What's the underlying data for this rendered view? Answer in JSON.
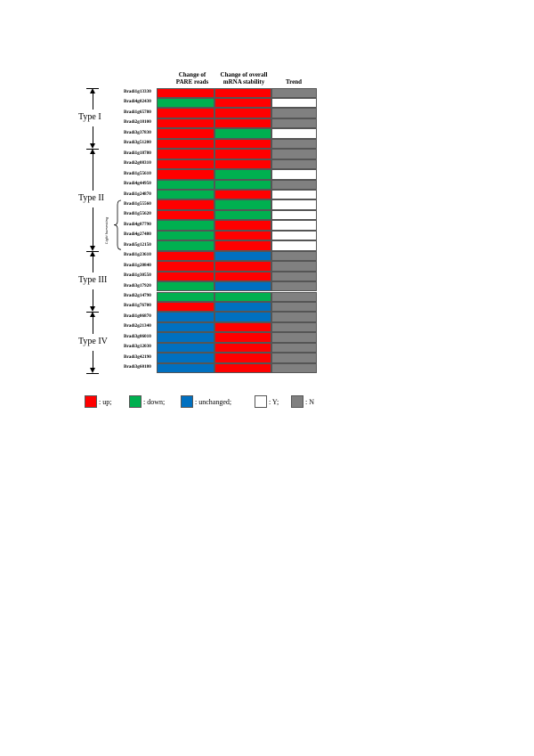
{
  "colors": {
    "up": "#ff0000",
    "down": "#00b050",
    "unchanged": "#0070c0",
    "Y": "#ffffff",
    "N": "#808080"
  },
  "chart_data": {
    "type": "heatmap",
    "columns": [
      "Change of\nPARE reads",
      "Change of overall\nmRNA stability",
      "Trend"
    ],
    "rows": [
      {
        "gene": "Bradi1g13330",
        "pare": "up",
        "stability": "up",
        "trend": "N"
      },
      {
        "gene": "Bradi4g02430",
        "pare": "down",
        "stability": "up",
        "trend": "Y"
      },
      {
        "gene": "Bradi1g65780",
        "pare": "up",
        "stability": "up",
        "trend": "N"
      },
      {
        "gene": "Bradi2g18100",
        "pare": "up",
        "stability": "up",
        "trend": "N"
      },
      {
        "gene": "Bradi3g37830",
        "pare": "up",
        "stability": "down",
        "trend": "Y"
      },
      {
        "gene": "Bradi3g51200",
        "pare": "up",
        "stability": "up",
        "trend": "N"
      },
      {
        "gene": "Bradi1g18780",
        "pare": "up",
        "stability": "up",
        "trend": "N"
      },
      {
        "gene": "Bradi2g08310",
        "pare": "up",
        "stability": "up",
        "trend": "N"
      },
      {
        "gene": "Bradi1g55610",
        "pare": "up",
        "stability": "down",
        "trend": "Y"
      },
      {
        "gene": "Bradi4g44950",
        "pare": "down",
        "stability": "down",
        "trend": "N"
      },
      {
        "gene": "Bradi1g24870",
        "pare": "down",
        "stability": "up",
        "trend": "Y"
      },
      {
        "gene": "Bradi1g55560",
        "pare": "up",
        "stability": "down",
        "trend": "Y"
      },
      {
        "gene": "Bradi1g55620",
        "pare": "up",
        "stability": "down",
        "trend": "Y"
      },
      {
        "gene": "Bradi4g07790",
        "pare": "down",
        "stability": "up",
        "trend": "Y"
      },
      {
        "gene": "Bradi4g27480",
        "pare": "down",
        "stability": "up",
        "trend": "Y"
      },
      {
        "gene": "Bradi5g12150",
        "pare": "down",
        "stability": "up",
        "trend": "Y"
      },
      {
        "gene": "Bradi1g23610",
        "pare": "up",
        "stability": "unchanged",
        "trend": "N"
      },
      {
        "gene": "Bradi1g20840",
        "pare": "up",
        "stability": "up",
        "trend": "N"
      },
      {
        "gene": "Bradi1g30550",
        "pare": "up",
        "stability": "up",
        "trend": "N"
      },
      {
        "gene": "Bradi3g17920",
        "pare": "down",
        "stability": "unchanged",
        "trend": "N"
      },
      {
        "gene": "Bradi2g14790",
        "pare": "down",
        "stability": "down",
        "trend": "N"
      },
      {
        "gene": "Bradi1g76700",
        "pare": "up",
        "stability": "unchanged",
        "trend": "N"
      },
      {
        "gene": "Bradi1g06870",
        "pare": "unchanged",
        "stability": "unchanged",
        "trend": "N"
      },
      {
        "gene": "Bradi2g21340",
        "pare": "unchanged",
        "stability": "up",
        "trend": "N"
      },
      {
        "gene": "Bradi3g06010",
        "pare": "unchanged",
        "stability": "up",
        "trend": "N"
      },
      {
        "gene": "Bradi3g12030",
        "pare": "unchanged",
        "stability": "up",
        "trend": "N"
      },
      {
        "gene": "Bradi3g42190",
        "pare": "unchanged",
        "stability": "up",
        "trend": "N"
      },
      {
        "gene": "Bradi3g60180",
        "pare": "unchanged",
        "stability": "up",
        "trend": "N"
      }
    ],
    "groups": [
      {
        "label": "Type I",
        "from_row": 0,
        "to_row": 5
      },
      {
        "label": "Type II",
        "from_row": 6,
        "to_row": 15
      },
      {
        "label": "Type III",
        "from_row": 16,
        "to_row": 21
      },
      {
        "label": "Type IV",
        "from_row": 22,
        "to_row": 27
      }
    ],
    "bracket": {
      "label": "Light harvesting",
      "from_row": 11,
      "to_row": 15
    },
    "legend": [
      {
        "key": "up",
        "label": ": up;"
      },
      {
        "key": "down",
        "label": ": down;"
      },
      {
        "key": "unchanged",
        "label": ": unchanged;"
      },
      {
        "key": "Y",
        "label": ": Y;"
      },
      {
        "key": "N",
        "label": ": N"
      }
    ]
  }
}
